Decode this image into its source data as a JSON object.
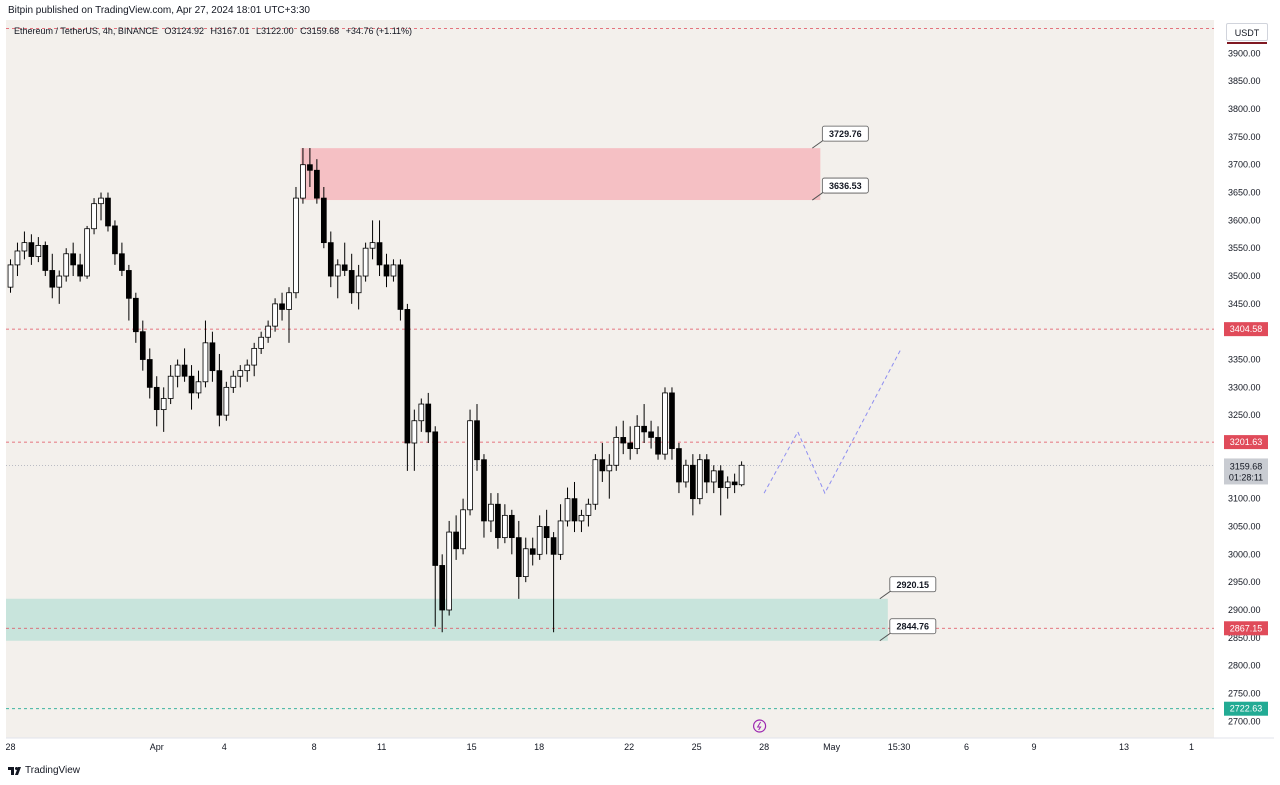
{
  "header": {
    "publish_line": "Bitpin published on TradingView.com, Apr 27, 2024 18:01 UTC+3:30"
  },
  "symbol": {
    "name": "Ethereum / TetherUS, 4h, BINANCE",
    "open": "O3124.92",
    "high": "H3167.01",
    "low": "L3122.00",
    "close": "C3159.68",
    "change": "+34.76 (+1.11%)"
  },
  "currency_label": "USDT",
  "footer": {
    "brand": "TradingView"
  },
  "colors": {
    "up": "#ffffff",
    "down": "#000000",
    "supply_zone": "#f5c0c4",
    "demand_zone": "#c8e4dc",
    "red_line": "#e04b5a",
    "green_line": "#22ab94",
    "projection": "#8e8ef0",
    "bg": "#f3f0ec"
  },
  "chart_data": {
    "type": "candlestick",
    "ylim": [
      2670,
      3960
    ],
    "y_ticks": [
      "3900.00",
      "3850.00",
      "3800.00",
      "3750.00",
      "3700.00",
      "3650.00",
      "3600.00",
      "3550.00",
      "3500.00",
      "3450.00",
      "3400.00",
      "3350.00",
      "3300.00",
      "3250.00",
      "3200.00",
      "3150.00",
      "3100.00",
      "3050.00",
      "3000.00",
      "2950.00",
      "2900.00",
      "2850.00",
      "2800.00",
      "2750.00",
      "2700.00"
    ],
    "x_ticks": [
      {
        "label": "28",
        "t": -5.0
      },
      {
        "label": "Apr",
        "t": 1.5
      },
      {
        "label": "4",
        "t": 4.5
      },
      {
        "label": "8",
        "t": 8.5
      },
      {
        "label": "11",
        "t": 11.5
      },
      {
        "label": "15",
        "t": 15.5
      },
      {
        "label": "18",
        "t": 18.5
      },
      {
        "label": "22",
        "t": 22.5
      },
      {
        "label": "25",
        "t": 25.5
      },
      {
        "label": "28",
        "t": 28.5
      },
      {
        "label": "May",
        "t": 31.5
      },
      {
        "label": "15:30",
        "t": 34.5
      },
      {
        "label": "6",
        "t": 37.5
      },
      {
        "label": "9",
        "t": 40.5
      },
      {
        "label": "13",
        "t": 44.5
      },
      {
        "label": "1",
        "t": 47.5
      }
    ],
    "t_range": [
      -5.2,
      48.5
    ],
    "candles": [
      [
        3480,
        3530,
        3470,
        3520
      ],
      [
        3520,
        3560,
        3500,
        3545
      ],
      [
        3545,
        3580,
        3530,
        3560
      ],
      [
        3560,
        3575,
        3520,
        3535
      ],
      [
        3535,
        3570,
        3525,
        3555
      ],
      [
        3555,
        3562,
        3500,
        3510
      ],
      [
        3510,
        3540,
        3460,
        3480
      ],
      [
        3480,
        3510,
        3450,
        3500
      ],
      [
        3500,
        3550,
        3490,
        3540
      ],
      [
        3540,
        3560,
        3500,
        3520
      ],
      [
        3520,
        3540,
        3490,
        3500
      ],
      [
        3500,
        3590,
        3495,
        3585
      ],
      [
        3585,
        3640,
        3575,
        3630
      ],
      [
        3630,
        3650,
        3600,
        3640
      ],
      [
        3640,
        3650,
        3580,
        3590
      ],
      [
        3590,
        3600,
        3520,
        3540
      ],
      [
        3540,
        3560,
        3500,
        3510
      ],
      [
        3510,
        3520,
        3420,
        3460
      ],
      [
        3460,
        3470,
        3380,
        3400
      ],
      [
        3400,
        3420,
        3330,
        3350
      ],
      [
        3350,
        3370,
        3280,
        3300
      ],
      [
        3300,
        3320,
        3230,
        3260
      ],
      [
        3260,
        3300,
        3220,
        3280
      ],
      [
        3280,
        3340,
        3270,
        3320
      ],
      [
        3320,
        3350,
        3300,
        3340
      ],
      [
        3340,
        3370,
        3310,
        3320
      ],
      [
        3320,
        3340,
        3260,
        3290
      ],
      [
        3290,
        3330,
        3280,
        3310
      ],
      [
        3310,
        3420,
        3300,
        3380
      ],
      [
        3380,
        3400,
        3310,
        3330
      ],
      [
        3330,
        3360,
        3230,
        3250
      ],
      [
        3250,
        3310,
        3240,
        3300
      ],
      [
        3300,
        3330,
        3290,
        3320
      ],
      [
        3320,
        3340,
        3300,
        3330
      ],
      [
        3330,
        3350,
        3310,
        3340
      ],
      [
        3340,
        3380,
        3320,
        3370
      ],
      [
        3370,
        3400,
        3360,
        3390
      ],
      [
        3390,
        3420,
        3380,
        3410
      ],
      [
        3410,
        3460,
        3400,
        3450
      ],
      [
        3450,
        3470,
        3420,
        3440
      ],
      [
        3440,
        3480,
        3380,
        3470
      ],
      [
        3470,
        3660,
        3460,
        3640
      ],
      [
        3640,
        3730,
        3630,
        3700
      ],
      [
        3700,
        3730,
        3660,
        3690
      ],
      [
        3690,
        3710,
        3630,
        3640
      ],
      [
        3640,
        3660,
        3550,
        3560
      ],
      [
        3560,
        3580,
        3480,
        3500
      ],
      [
        3500,
        3530,
        3460,
        3520
      ],
      [
        3520,
        3560,
        3500,
        3510
      ],
      [
        3510,
        3540,
        3450,
        3470
      ],
      [
        3470,
        3520,
        3440,
        3500
      ],
      [
        3500,
        3560,
        3490,
        3550
      ],
      [
        3550,
        3600,
        3530,
        3560
      ],
      [
        3560,
        3600,
        3500,
        3520
      ],
      [
        3520,
        3540,
        3480,
        3500
      ],
      [
        3500,
        3530,
        3490,
        3520
      ],
      [
        3520,
        3530,
        3420,
        3440
      ],
      [
        3440,
        3450,
        3150,
        3200
      ],
      [
        3200,
        3260,
        3150,
        3240
      ],
      [
        3240,
        3280,
        3220,
        3270
      ],
      [
        3270,
        3290,
        3200,
        3220
      ],
      [
        3220,
        3230,
        2870,
        2980
      ],
      [
        2980,
        3000,
        2860,
        2900
      ],
      [
        2900,
        3060,
        2890,
        3040
      ],
      [
        3040,
        3070,
        2990,
        3010
      ],
      [
        3010,
        3100,
        3000,
        3080
      ],
      [
        3080,
        3260,
        3070,
        3240
      ],
      [
        3240,
        3270,
        3150,
        3170
      ],
      [
        3170,
        3180,
        3030,
        3060
      ],
      [
        3060,
        3110,
        3040,
        3090
      ],
      [
        3090,
        3110,
        3010,
        3030
      ],
      [
        3030,
        3090,
        3020,
        3070
      ],
      [
        3070,
        3080,
        3000,
        3030
      ],
      [
        3030,
        3060,
        2920,
        2960
      ],
      [
        2960,
        3030,
        2950,
        3010
      ],
      [
        3010,
        3030,
        2980,
        3000
      ],
      [
        3000,
        3070,
        2990,
        3050
      ],
      [
        3050,
        3080,
        3000,
        3030
      ],
      [
        3030,
        3040,
        2860,
        3000
      ],
      [
        3000,
        3090,
        2990,
        3060
      ],
      [
        3060,
        3120,
        3050,
        3100
      ],
      [
        3100,
        3130,
        3040,
        3060
      ],
      [
        3060,
        3080,
        3040,
        3070
      ],
      [
        3070,
        3100,
        3050,
        3090
      ],
      [
        3090,
        3180,
        3080,
        3170
      ],
      [
        3170,
        3200,
        3130,
        3150
      ],
      [
        3150,
        3180,
        3100,
        3160
      ],
      [
        3160,
        3230,
        3150,
        3210
      ],
      [
        3210,
        3240,
        3180,
        3200
      ],
      [
        3200,
        3230,
        3170,
        3190
      ],
      [
        3190,
        3250,
        3180,
        3230
      ],
      [
        3230,
        3270,
        3200,
        3220
      ],
      [
        3220,
        3240,
        3190,
        3210
      ],
      [
        3210,
        3230,
        3170,
        3180
      ],
      [
        3180,
        3300,
        3170,
        3290
      ],
      [
        3290,
        3300,
        3170,
        3190
      ],
      [
        3190,
        3200,
        3110,
        3130
      ],
      [
        3130,
        3170,
        3120,
        3160
      ],
      [
        3160,
        3180,
        3070,
        3100
      ],
      [
        3100,
        3180,
        3090,
        3170
      ],
      [
        3170,
        3180,
        3110,
        3130
      ],
      [
        3130,
        3160,
        3110,
        3150
      ],
      [
        3150,
        3160,
        3070,
        3120
      ],
      [
        3120,
        3140,
        3100,
        3130
      ],
      [
        3130,
        3145,
        3110,
        3125
      ],
      [
        3125,
        3167,
        3122,
        3160
      ]
    ],
    "zones": [
      {
        "name": "supply",
        "from": 3636.53,
        "to": 3729.76,
        "t_start": 7.9,
        "t_end": 31.0
      },
      {
        "name": "demand",
        "from": 2844.76,
        "to": 2920.15,
        "t_start": -5.2,
        "t_end": 34.0
      }
    ],
    "levels": [
      {
        "price": 3945,
        "color": "#e04b5a",
        "label": ""
      },
      {
        "price": 3404.58,
        "color": "#e04b5a",
        "label": "3404.58"
      },
      {
        "price": 3201.63,
        "color": "#e04b5a",
        "label": "3201.63"
      },
      {
        "price": 2867.15,
        "color": "#e04b5a",
        "label": "2867.15"
      },
      {
        "price": 2722.63,
        "color": "#22ab94",
        "label": "2722.63"
      }
    ],
    "callouts": [
      {
        "text": "3729.76",
        "price": 3729.76,
        "t": 31.0
      },
      {
        "text": "3636.53",
        "price": 3636.53,
        "t": 31.0
      },
      {
        "text": "2920.15",
        "price": 2920.15,
        "t": 34.0
      },
      {
        "text": "2844.76",
        "price": 2844.76,
        "t": 34.0
      }
    ],
    "projection": [
      [
        28.5,
        3110
      ],
      [
        30.0,
        3220
      ],
      [
        31.2,
        3110
      ],
      [
        34.6,
        3370
      ]
    ],
    "last_price": {
      "value": "3159.68",
      "countdown": "01:28:11",
      "price": 3159.68
    }
  }
}
